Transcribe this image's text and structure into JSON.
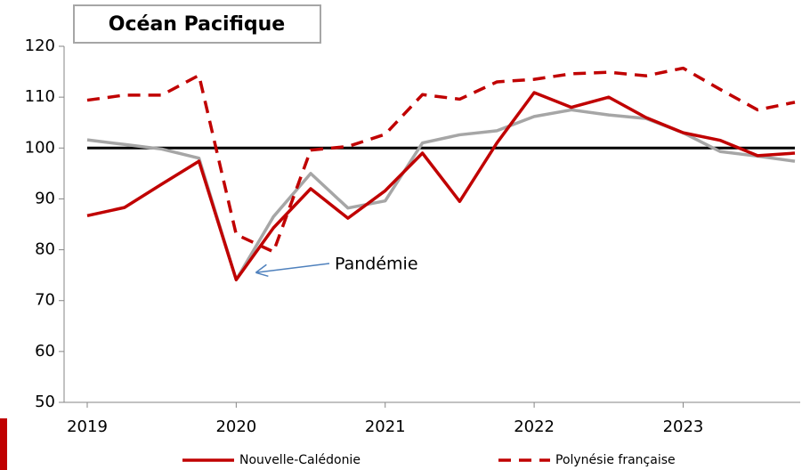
{
  "chart_data": {
    "type": "line",
    "title": "Océan Pacifique",
    "x": [
      2019,
      2019.25,
      2019.5,
      2019.75,
      2020,
      2020.25,
      2020.5,
      2020.75,
      2021,
      2021.25,
      2021.5,
      2021.75,
      2022,
      2022.25,
      2022.5,
      2022.75,
      2023,
      2023.25,
      2023.5,
      2023.75
    ],
    "series": [
      {
        "name": "Nouvelle-Calédonie",
        "color": "#c00000",
        "dash": false,
        "values": [
          86.7,
          88.3,
          92.9,
          97.4,
          74.1,
          84.3,
          92,
          86.2,
          91.6,
          99,
          89.5,
          101,
          110.9,
          108,
          110,
          106,
          103,
          101.5,
          98.5,
          99
        ]
      },
      {
        "name": "Polynésie française",
        "color": "#c00000",
        "dash": true,
        "values": [
          109.4,
          110.4,
          110.4,
          114.3,
          83,
          79.6,
          99.6,
          100.3,
          102.7,
          110.5,
          109.6,
          113,
          113.5,
          114.6,
          114.9,
          114.2,
          115.7,
          111.5,
          107.5,
          109
        ]
      },
      {
        "color": "#a6a6a6",
        "dash": false,
        "values": [
          101.6,
          100.7,
          99.8,
          98,
          74.1,
          86.5,
          95,
          88.2,
          89.6,
          101,
          102.6,
          103.4,
          106.2,
          107.5,
          106.5,
          105.8,
          103,
          99.3,
          98.4,
          97.4
        ]
      }
    ],
    "hline": 100,
    "annotation": {
      "text": "Pandémie",
      "x": 2020,
      "y": 74.1
    },
    "xlim": [
      2019,
      2023.75
    ],
    "xticks": [
      2019,
      2020,
      2021,
      2022,
      2023
    ],
    "ylim": [
      50,
      120
    ],
    "yticks": [
      50,
      60,
      70,
      80,
      90,
      100,
      110,
      120
    ]
  }
}
